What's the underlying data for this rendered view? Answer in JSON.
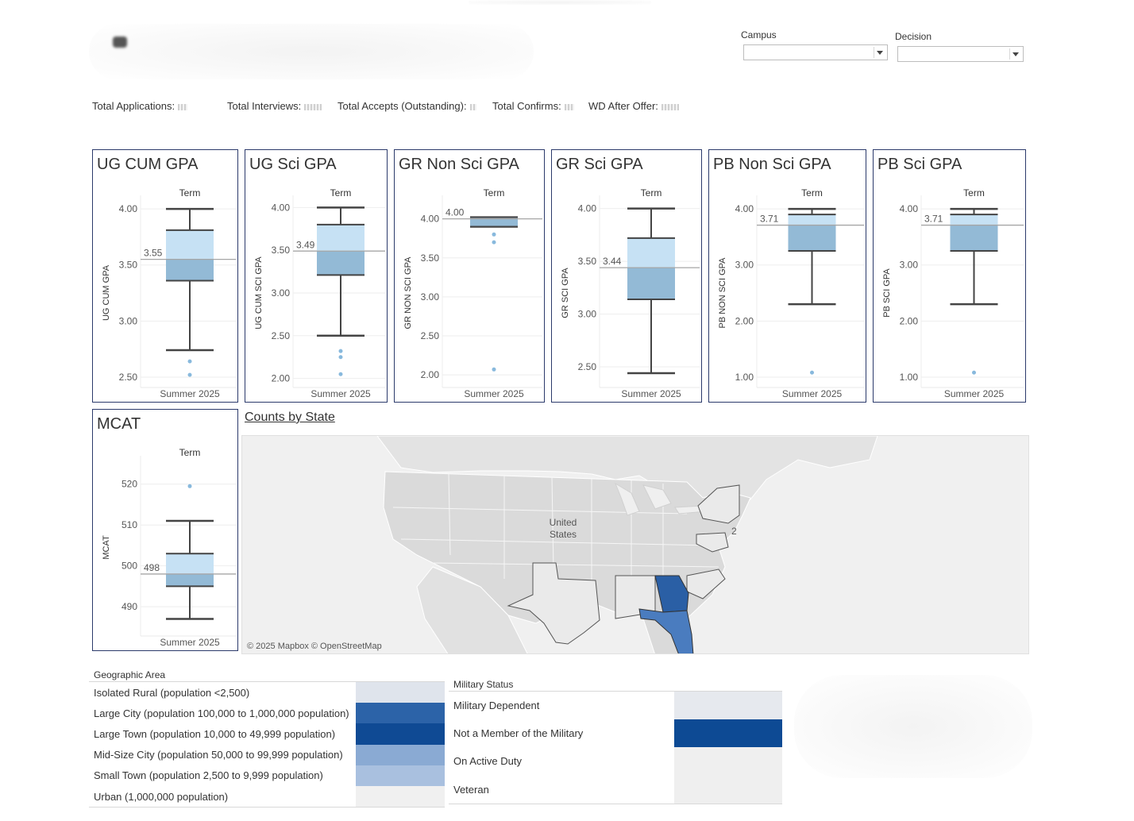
{
  "filters": {
    "campus": {
      "label": "Campus",
      "value": ""
    },
    "decision": {
      "label": "Decision",
      "value": ""
    }
  },
  "kpis": [
    {
      "label": "Total Applications:"
    },
    {
      "label": "Total Interviews:"
    },
    {
      "label": "Total Accepts (Outstanding):"
    },
    {
      "label": "Total Confirms:"
    },
    {
      "label": "WD After Offer:"
    }
  ],
  "panels": [
    {
      "id": "ug-cum-gpa",
      "title": "UG CUM GPA",
      "term_label": "Term",
      "y_axis_label": "UG CUM GPA",
      "x_label": "Summer 2025",
      "ticks": [
        "4.00",
        "3.50",
        "3.00",
        "2.50"
      ],
      "tick_values": [
        4.0,
        3.5,
        3.0,
        2.5
      ],
      "ylim": [
        2.45,
        4.05
      ],
      "whisker_low": 2.74,
      "q1": 3.36,
      "median": 3.55,
      "q3": 3.81,
      "whisker_high": 4.0,
      "median_label": "3.55",
      "outliers": [
        2.64,
        2.52
      ]
    },
    {
      "id": "ug-sci-gpa",
      "title": "UG Sci GPA",
      "term_label": "Term",
      "y_axis_label": "UG CUM SCI GPA",
      "x_label": "Summer 2025",
      "ticks": [
        "4.00",
        "3.50",
        "3.00",
        "2.50",
        "2.00"
      ],
      "tick_values": [
        4.0,
        3.5,
        3.0,
        2.5,
        2.0
      ],
      "ylim": [
        1.95,
        4.05
      ],
      "whisker_low": 2.5,
      "q1": 3.21,
      "median": 3.49,
      "q3": 3.8,
      "whisker_high": 4.0,
      "median_label": "3.49",
      "outliers": [
        2.32,
        2.25,
        2.05
      ]
    },
    {
      "id": "gr-non-sci-gpa",
      "title": "GR Non Sci GPA",
      "term_label": "Term",
      "y_axis_label": "GR NON SCI GPA",
      "x_label": "Summer 2025",
      "ticks": [
        "4.00",
        "3.50",
        "3.00",
        "2.50",
        "2.00"
      ],
      "tick_values": [
        4.0,
        3.5,
        3.0,
        2.5,
        2.0
      ],
      "ylim": [
        1.9,
        4.2
      ],
      "whisker_low": 3.9,
      "q1": 3.9,
      "median": 4.0,
      "q3": 4.02,
      "whisker_high": 4.02,
      "median_label": "4.00",
      "outliers": [
        3.8,
        3.7,
        2.07
      ]
    },
    {
      "id": "gr-sci-gpa",
      "title": "GR Sci GPA",
      "term_label": "Term",
      "y_axis_label": "GR SCI GPA",
      "x_label": "Summer 2025",
      "ticks": [
        "4.00",
        "3.50",
        "3.00",
        "2.50"
      ],
      "tick_values": [
        4.0,
        3.5,
        3.0,
        2.5
      ],
      "ylim": [
        2.35,
        4.05
      ],
      "whisker_low": 2.44,
      "q1": 3.14,
      "median": 3.44,
      "q3": 3.72,
      "whisker_high": 4.0,
      "median_label": "3.44",
      "outliers": []
    },
    {
      "id": "pb-non-sci-gpa",
      "title": "PB Non Sci GPA",
      "term_label": "Term",
      "y_axis_label": "PB NON SCI GPA",
      "x_label": "Summer 2025",
      "ticks": [
        "4.00",
        "3.00",
        "2.00",
        "1.00"
      ],
      "tick_values": [
        4.0,
        3.0,
        2.0,
        1.0
      ],
      "ylim": [
        0.9,
        4.1
      ],
      "whisker_low": 2.3,
      "q1": 3.25,
      "median": 3.71,
      "q3": 3.9,
      "whisker_high": 4.0,
      "median_label": "3.71",
      "outliers": [
        1.08
      ]
    },
    {
      "id": "pb-sci-gpa",
      "title": "PB Sci GPA",
      "term_label": "Term",
      "y_axis_label": "PB SCI GPA",
      "x_label": "Summer 2025",
      "ticks": [
        "4.00",
        "3.00",
        "2.00",
        "1.00"
      ],
      "tick_values": [
        4.0,
        3.0,
        2.0,
        1.0
      ],
      "ylim": [
        0.9,
        4.1
      ],
      "whisker_low": 2.3,
      "q1": 3.25,
      "median": 3.71,
      "q3": 3.9,
      "whisker_high": 4.0,
      "median_label": "3.71",
      "outliers": [
        1.08
      ]
    },
    {
      "id": "mcat",
      "title": "MCAT",
      "term_label": "Term",
      "y_axis_label": "MCAT",
      "x_label": "Summer 2025",
      "ticks": [
        "520",
        "510",
        "500",
        "490"
      ],
      "tick_values": [
        520,
        510,
        500,
        490
      ],
      "ylim": [
        484,
        525
      ],
      "whisker_low": 487,
      "q1": 495,
      "median": 498,
      "q3": 503,
      "whisker_high": 511,
      "median_label": "498",
      "outliers": [
        519.5
      ]
    }
  ],
  "map": {
    "title": "Counts by State",
    "country_label_line1": "United",
    "country_label_line2": "States",
    "marker_label": "2",
    "credit": "© 2025 Mapbox © OpenStreetMap",
    "colors": {
      "land": "#dcdcdc",
      "water": "#f2f2f2",
      "highlight_strong": "#2a5fa5",
      "highlight_mid": "#4a7cbf",
      "state_outline": "#ffffff"
    }
  },
  "geographic_area": {
    "header": "Geographic Area",
    "rows": [
      {
        "label": "Isolated Rural (population <2,500)",
        "color": "#dfe4ec"
      },
      {
        "label": "Large City (population 100,000 to 1,000,000 population)",
        "color": "#2c63a8"
      },
      {
        "label": "Large Town (population 10,000 to 49,999 population)",
        "color": "#0f4a94"
      },
      {
        "label": "Mid-Size City (population 50,000 to 99,999 population)",
        "color": "#8aaad3"
      },
      {
        "label": "Small Town (population 2,500 to 9,999 population)",
        "color": "#a9c0df"
      },
      {
        "label": "Urban (1,000,000 population)",
        "color": "#f0f0f0"
      }
    ]
  },
  "military_status": {
    "header": "Military Status",
    "rows": [
      {
        "label": "Military Dependent",
        "color": "#e6e9ee"
      },
      {
        "label": "Not a Member of the Military",
        "color": "#0d4a94"
      },
      {
        "label": "On Active Duty",
        "color": "#efefef"
      },
      {
        "label": "Veteran",
        "color": "#efefef"
      }
    ]
  }
}
